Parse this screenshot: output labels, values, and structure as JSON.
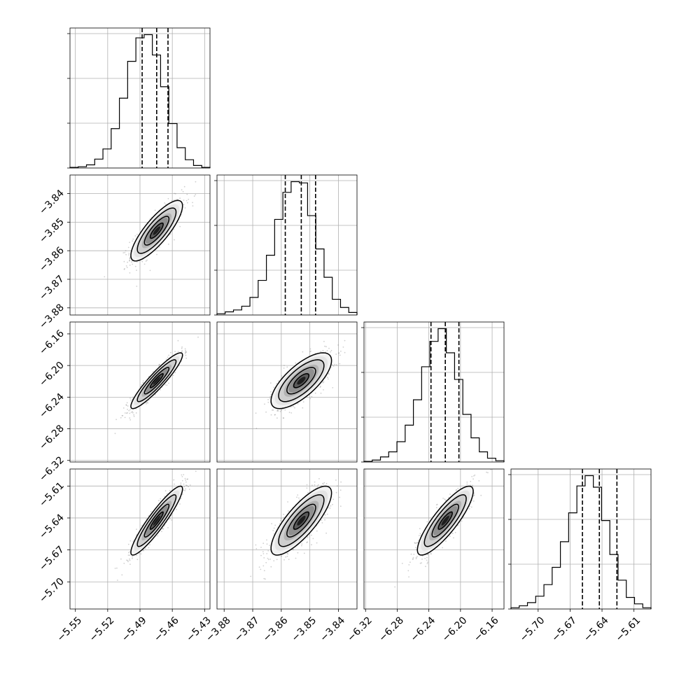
{
  "chart_data": {
    "type": "corner",
    "grid": true,
    "parameters": [
      {
        "range": [
          -5.555,
          -5.425
        ],
        "ticks": [
          "-5.55",
          "-5.52",
          "-5.49",
          "-5.46",
          "-5.43"
        ],
        "quantiles": [
          -5.488,
          -5.4745,
          -5.464
        ]
      },
      {
        "range": [
          -3.8825,
          -3.8335
        ],
        "ticks": [
          "-3.88",
          "-3.87",
          "-3.86",
          "-3.85",
          "-3.84"
        ],
        "quantiles": [
          -3.8586,
          -3.853,
          -3.848
        ]
      },
      {
        "range": [
          -6.322,
          -6.145
        ],
        "ticks": [
          "-6.32",
          "-6.28",
          "-6.24",
          "-6.20",
          "-6.16"
        ],
        "quantiles": [
          -6.2373,
          -6.2192,
          -6.202
        ]
      },
      {
        "range": [
          -5.7255,
          -5.594
        ],
        "ticks": [
          "-5.70",
          "-5.67",
          "-5.64",
          "-5.61"
        ],
        "quantiles": [
          -5.6584,
          -5.6425,
          -5.626
        ]
      }
    ],
    "histograms": [
      {
        "param": 0,
        "counts": [
          1,
          2,
          5,
          14,
          30,
          62,
          110,
          168,
          205,
          210,
          178,
          128,
          70,
          32,
          13,
          4,
          1
        ]
      },
      {
        "param": 1,
        "counts": [
          2,
          5,
          8,
          14,
          28,
          55,
          95,
          152,
          195,
          212,
          210,
          158,
          105,
          60,
          25,
          12,
          4
        ]
      },
      {
        "param": 2,
        "counts": [
          1,
          3,
          8,
          16,
          32,
          58,
          98,
          150,
          190,
          210,
          172,
          130,
          75,
          38,
          16,
          6,
          2
        ]
      },
      {
        "param": 3,
        "counts": [
          2,
          5,
          10,
          20,
          38,
          65,
          105,
          150,
          192,
          208,
          190,
          138,
          85,
          45,
          18,
          8,
          2
        ]
      }
    ],
    "pairs": [
      {
        "x_param": 0,
        "y_param": 1,
        "correlation": 0.82
      },
      {
        "x_param": 0,
        "y_param": 2,
        "correlation": 0.92
      },
      {
        "x_param": 1,
        "y_param": 2,
        "correlation": 0.72
      },
      {
        "x_param": 0,
        "y_param": 3,
        "correlation": 0.92
      },
      {
        "x_param": 1,
        "y_param": 3,
        "correlation": 0.8
      },
      {
        "x_param": 2,
        "y_param": 3,
        "correlation": 0.85
      }
    ]
  }
}
